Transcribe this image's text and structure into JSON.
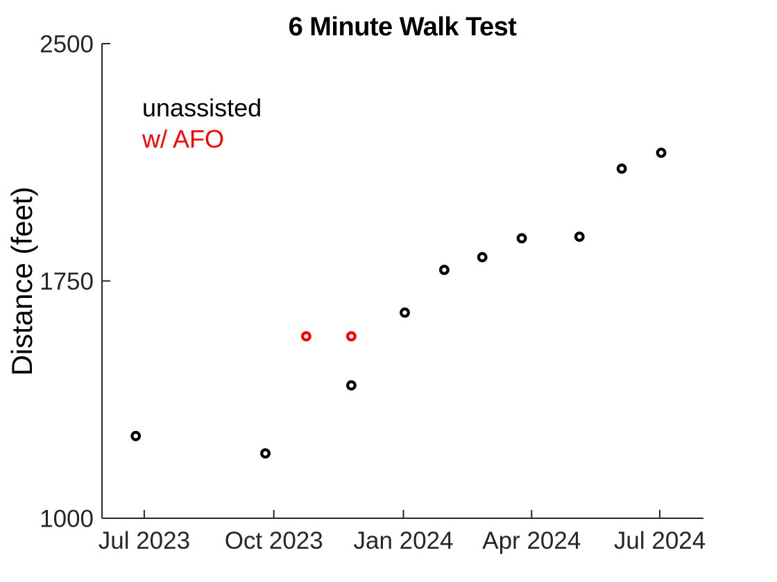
{
  "page": {
    "background": "#FFFFFF"
  },
  "axis": {
    "line_color": "#262626",
    "tick_label_color": "#262626",
    "text_color": "#000000"
  },
  "chart_data": {
    "type": "scatter",
    "title": "6 Minute Walk Test",
    "xlabel": "",
    "ylabel": "Distance (feet)",
    "xlim": [
      "2023-06-01",
      "2024-08-01"
    ],
    "ylim": [
      1000,
      2500
    ],
    "grid": false,
    "box": false,
    "marker": "open-circle",
    "legend_position": "top-left-inside",
    "y_ticks": [
      {
        "value": 1000,
        "label": "1000"
      },
      {
        "value": 1750,
        "label": "1750"
      },
      {
        "value": 2500,
        "label": "2500"
      }
    ],
    "x_ticks": [
      {
        "date": "2023-07-01",
        "label": "Jul 2023"
      },
      {
        "date": "2023-10-01",
        "label": "Oct 2023"
      },
      {
        "date": "2024-01-01",
        "label": "Jan 2024"
      },
      {
        "date": "2024-04-01",
        "label": "Apr 2024"
      },
      {
        "date": "2024-07-01",
        "label": "Jul 2024"
      }
    ],
    "series": [
      {
        "name": "unassisted",
        "color": "#000000",
        "points": [
          {
            "date": "2023-06-25",
            "feet": 1260
          },
          {
            "date": "2023-09-25",
            "feet": 1205
          },
          {
            "date": "2023-11-25",
            "feet": 1420
          },
          {
            "date": "2024-01-02",
            "feet": 1650
          },
          {
            "date": "2024-01-30",
            "feet": 1785
          },
          {
            "date": "2024-02-26",
            "feet": 1825
          },
          {
            "date": "2024-03-25",
            "feet": 1885
          },
          {
            "date": "2024-05-05",
            "feet": 1890
          },
          {
            "date": "2024-06-04",
            "feet": 2105
          },
          {
            "date": "2024-07-02",
            "feet": 2155
          }
        ]
      },
      {
        "name": "w/ AFO",
        "color": "#FF0000",
        "points": [
          {
            "date": "2023-10-24",
            "feet": 1575
          },
          {
            "date": "2023-11-25",
            "feet": 1575
          }
        ]
      }
    ]
  }
}
